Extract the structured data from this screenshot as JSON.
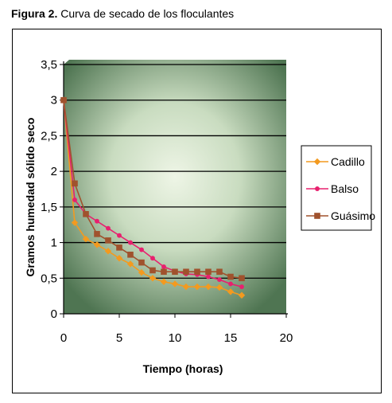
{
  "figure": {
    "label": "Figura 2.",
    "title": "Curva de secado de los floculantes"
  },
  "chart_data": {
    "type": "line",
    "xlabel": "Tiempo (horas)",
    "ylabel": "Gramos humedad sólido seco",
    "xlim": [
      0,
      20
    ],
    "ylim": [
      0,
      3.5
    ],
    "xticks": [
      "0",
      "5",
      "10",
      "15",
      "20"
    ],
    "yticks": [
      "0",
      "0,5",
      "1",
      "1,5",
      "2",
      "2,5",
      "3",
      "3,5"
    ],
    "grid": "horizontal",
    "legend_position": "right",
    "series": [
      {
        "name": "Cadillo",
        "color": "#f39a1f",
        "marker": "diamond",
        "x": [
          0,
          1,
          2,
          3,
          4,
          5,
          6,
          7,
          8,
          9,
          10,
          11,
          12,
          13,
          14,
          15,
          16
        ],
        "y": [
          3.0,
          1.28,
          1.05,
          0.97,
          0.88,
          0.78,
          0.7,
          0.58,
          0.5,
          0.45,
          0.42,
          0.38,
          0.38,
          0.38,
          0.37,
          0.31,
          0.26
        ]
      },
      {
        "name": "Balso",
        "color": "#e8206e",
        "marker": "circle",
        "x": [
          0,
          1,
          2,
          3,
          4,
          5,
          6,
          7,
          8,
          9,
          10,
          11,
          12,
          13,
          14,
          15,
          16
        ],
        "y": [
          3.0,
          1.6,
          1.4,
          1.3,
          1.2,
          1.1,
          1.0,
          0.9,
          0.78,
          0.66,
          0.6,
          0.56,
          0.55,
          0.52,
          0.48,
          0.42,
          0.38
        ]
      },
      {
        "name": "Guásimo",
        "color": "#a0522d",
        "marker": "square",
        "x": [
          0,
          1,
          2,
          3,
          4,
          5,
          6,
          7,
          8,
          9,
          10,
          11,
          12,
          13,
          14,
          15,
          16
        ],
        "y": [
          3.0,
          1.83,
          1.4,
          1.12,
          1.03,
          0.93,
          0.83,
          0.72,
          0.61,
          0.59,
          0.59,
          0.59,
          0.59,
          0.59,
          0.59,
          0.52,
          0.5
        ]
      }
    ]
  }
}
